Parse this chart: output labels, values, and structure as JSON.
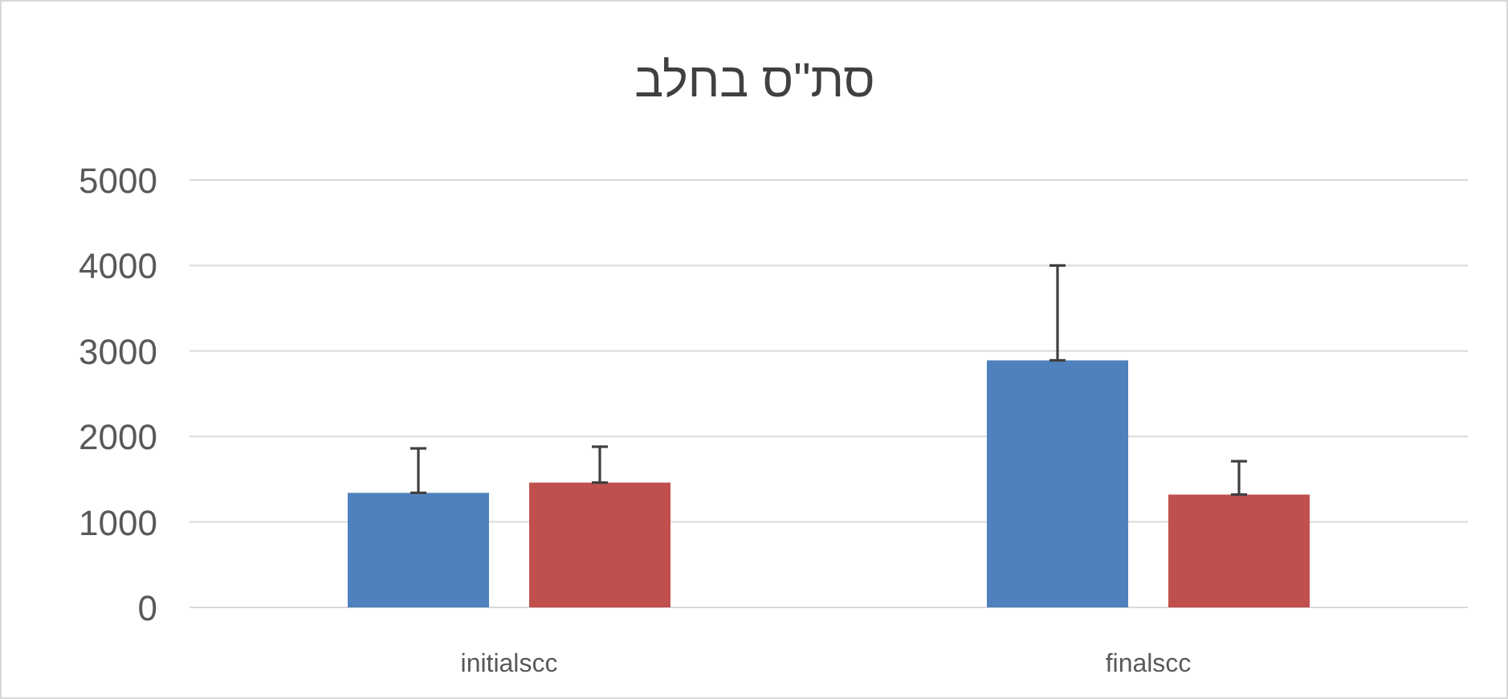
{
  "chart_data": {
    "type": "bar",
    "title": "סת\"ס בחלב",
    "categories": [
      "initialscc",
      "finalscc"
    ],
    "series": [
      {
        "color": "#4f81bd",
        "values": [
          1340,
          2890
        ],
        "errors": [
          [
            1340,
            1860
          ],
          [
            2890,
            4000
          ]
        ]
      },
      {
        "color": "#c0504d",
        "values": [
          1460,
          1320
        ],
        "errors": [
          [
            1460,
            1880
          ],
          [
            1320,
            1710
          ]
        ]
      }
    ],
    "ylim": [
      0,
      5000
    ],
    "yticks": [
      0,
      1000,
      2000,
      3000,
      4000,
      5000
    ],
    "grid": "y"
  }
}
